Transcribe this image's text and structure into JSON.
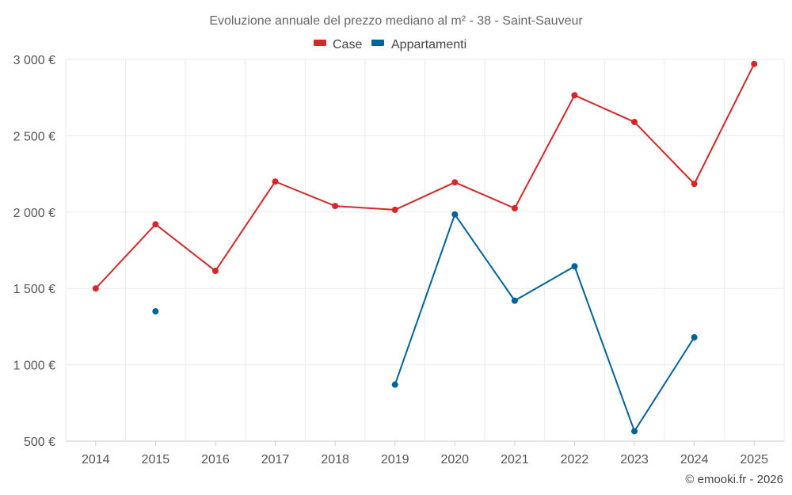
{
  "chart_data": {
    "type": "line",
    "title": "Evoluzione annuale del prezzo mediano al m² - 38 - Saint-Sauveur",
    "categories": [
      "2014",
      "2015",
      "2016",
      "2017",
      "2018",
      "2019",
      "2020",
      "2021",
      "2022",
      "2023",
      "2024",
      "2025"
    ],
    "ylim": [
      500,
      3000
    ],
    "yticks": [
      500,
      1000,
      1500,
      2000,
      2500,
      3000
    ],
    "ytick_labels": [
      "500 €",
      "1 000 €",
      "1 500 €",
      "2 000 €",
      "2 500 €",
      "3 000 €"
    ],
    "grid": true,
    "legend_position": "top-center",
    "series": [
      {
        "name": "Case",
        "color": "#d62728",
        "values": [
          1500,
          1920,
          1615,
          2200,
          2040,
          2015,
          2195,
          2025,
          2765,
          2590,
          2185,
          2970
        ]
      },
      {
        "name": "Appartamenti",
        "color": "#00629b",
        "values": [
          null,
          1350,
          null,
          null,
          null,
          870,
          1985,
          1420,
          1645,
          565,
          1180,
          null
        ]
      }
    ],
    "credit": "© emooki.fr - 2026"
  }
}
